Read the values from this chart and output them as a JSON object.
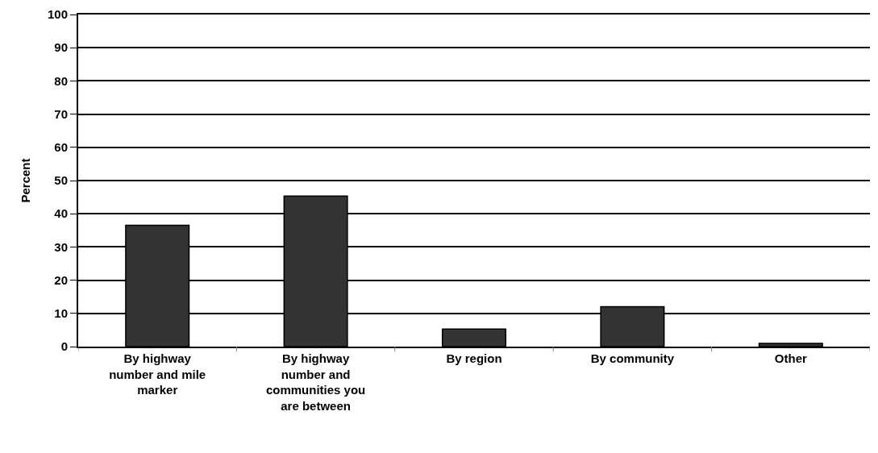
{
  "chart_data": {
    "type": "bar",
    "ylabel": "Percent",
    "categories": [
      "By highway number and mile marker",
      "By highway number and communities you are between",
      "By region",
      "By community",
      "Other"
    ],
    "values": [
      36.5,
      45.3,
      5.3,
      12,
      1
    ],
    "color": "#333333",
    "ylim": [
      0,
      100
    ],
    "yticks": [
      0,
      10,
      20,
      30,
      40,
      50,
      60,
      70,
      80,
      90,
      100
    ],
    "grid": "y"
  }
}
